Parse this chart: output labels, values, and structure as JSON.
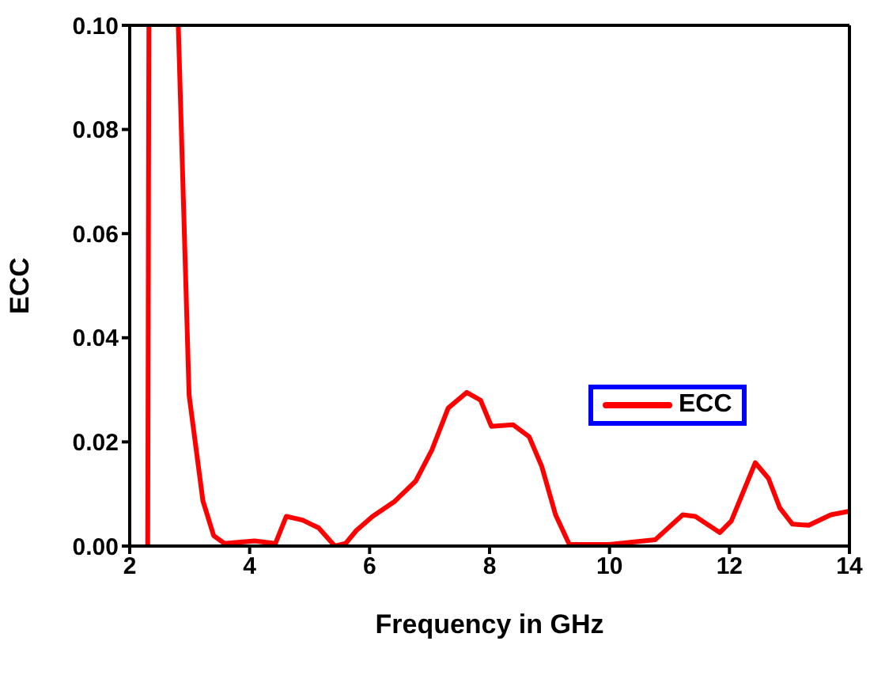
{
  "chart_data": {
    "type": "line",
    "xlabel": "Frequency in GHz",
    "ylabel": "ECC",
    "x": [
      2.3,
      2.32,
      2.5,
      2.81,
      2.99,
      3.22,
      3.4,
      3.58,
      4.08,
      4.43,
      4.61,
      4.88,
      5.15,
      5.42,
      5.6,
      5.78,
      6.05,
      6.41,
      6.77,
      7.04,
      7.31,
      7.62,
      7.85,
      8.03,
      8.39,
      8.66,
      8.87,
      9.1,
      9.33,
      10.0,
      10.76,
      11.22,
      11.43,
      11.84,
      12.03,
      12.43,
      12.65,
      12.84,
      13.05,
      13.32,
      13.69,
      14.0
    ],
    "series": [
      {
        "name": "ECC",
        "color": "#ff0000",
        "values": [
          0,
          0.1,
          null,
          0.1,
          0.029,
          0.0087,
          0.002,
          0.0005,
          0.001,
          0.0005,
          0.0057,
          0.005,
          0.0035,
          0,
          0.0005,
          0.003,
          0.0057,
          0.0085,
          0.0125,
          0.0185,
          0.0265,
          0.0295,
          0.028,
          0.023,
          0.0233,
          0.021,
          0.0153,
          0.006,
          0.0003,
          0.0003,
          0.0012,
          0.006,
          0.0057,
          0.0026,
          0.0048,
          0.016,
          0.013,
          0.0073,
          0.0042,
          0.004,
          0.006,
          0.0067
        ]
      }
    ],
    "xlim": [
      2,
      14
    ],
    "xticks": [
      2,
      4,
      6,
      8,
      10,
      12,
      14
    ],
    "ylim": [
      0,
      0.1
    ],
    "yticks": [
      {
        "value": 0,
        "label": "0.00"
      },
      {
        "value": 0.02,
        "label": "0.02"
      },
      {
        "value": 0.04,
        "label": "0.04"
      },
      {
        "value": 0.06,
        "label": "0.06"
      },
      {
        "value": 0.08,
        "label": "0.08"
      },
      {
        "value": 0.1,
        "label": "0.10"
      }
    ],
    "legend": "right",
    "grid": false,
    "marker": "none",
    "line_style": "solid"
  }
}
